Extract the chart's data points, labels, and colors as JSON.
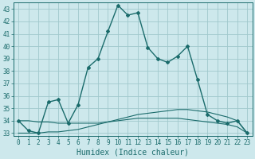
{
  "xlabel": "Humidex (Indice chaleur)",
  "bg_color": "#cde8ec",
  "grid_color": "#a0c8cc",
  "line_color": "#1a6b6b",
  "ylim": [
    32.8,
    43.5
  ],
  "xlim": [
    -0.5,
    23.5
  ],
  "yticks": [
    33,
    34,
    35,
    36,
    37,
    38,
    39,
    40,
    41,
    42,
    43
  ],
  "xticks": [
    0,
    1,
    2,
    3,
    4,
    5,
    6,
    7,
    8,
    9,
    10,
    11,
    12,
    13,
    14,
    15,
    16,
    17,
    18,
    19,
    20,
    21,
    22,
    23
  ],
  "series_main": [
    34.0,
    33.2,
    33.0,
    35.5,
    35.7,
    33.8,
    35.3,
    38.3,
    39.0,
    41.2,
    43.3,
    42.5,
    42.7,
    39.9,
    39.0,
    38.7,
    39.2,
    40.0,
    37.3,
    34.5,
    34.0,
    33.8,
    34.0,
    33.0
  ],
  "series_low": [
    33.0,
    33.0,
    33.0,
    33.1,
    33.1,
    33.2,
    33.3,
    33.5,
    33.7,
    33.9,
    34.1,
    34.3,
    34.5,
    34.6,
    34.7,
    34.8,
    34.9,
    34.9,
    34.8,
    34.7,
    34.5,
    34.3,
    34.0,
    33.0
  ],
  "series_flat": [
    34.0,
    34.0,
    33.9,
    33.9,
    33.8,
    33.8,
    33.8,
    33.8,
    33.8,
    33.9,
    34.0,
    34.1,
    34.2,
    34.2,
    34.2,
    34.2,
    34.2,
    34.1,
    34.0,
    33.9,
    33.8,
    33.7,
    33.5,
    33.0
  ],
  "tick_fontsize": 5.5,
  "xlabel_fontsize": 7
}
